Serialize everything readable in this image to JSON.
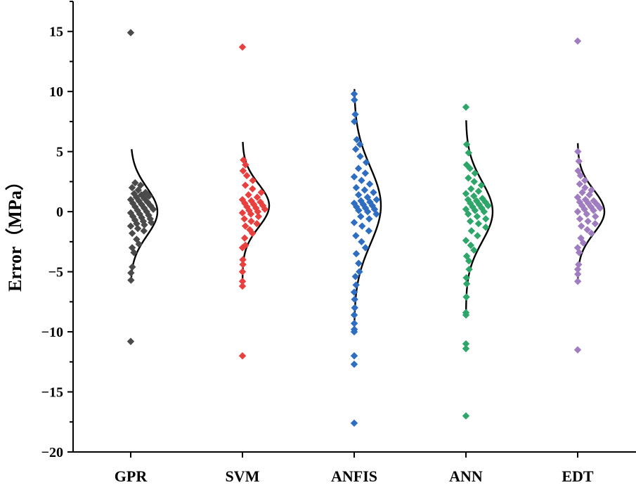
{
  "chart_data": {
    "type": "scatter",
    "title": "",
    "xlabel": "",
    "ylabel": "Error（MPa）",
    "ylim": [
      -20,
      17.5
    ],
    "yticks": [
      -20,
      -15,
      -10,
      -5,
      0,
      5,
      10,
      15
    ],
    "yticks_minor_step": 2.5,
    "grid": false,
    "legend": "none",
    "categories": [
      "GPR",
      "SVM",
      "ANFIS",
      "ANN",
      "EDT"
    ],
    "series": [
      {
        "category": "GPR",
        "color": "#4a4a4a",
        "curve": {
          "mean": 0,
          "sd": 2.0,
          "range": [
            -5.6,
            5.2
          ]
        },
        "values": [
          14.9,
          2.4,
          2.2,
          2.0,
          1.8,
          1.6,
          1.5,
          1.4,
          1.3,
          1.2,
          1.1,
          1.0,
          0.9,
          0.8,
          0.7,
          0.6,
          0.5,
          0.4,
          0.3,
          0.2,
          0.1,
          0.0,
          -0.1,
          -0.2,
          -0.3,
          -0.4,
          -0.5,
          -0.6,
          -0.7,
          -0.8,
          -0.9,
          -1.0,
          -1.1,
          -1.2,
          -1.4,
          -1.6,
          -1.8,
          -2.3,
          -2.7,
          -3.0,
          -3.4,
          -4.6,
          -5.1,
          -5.7,
          -10.8
        ]
      },
      {
        "category": "SVM",
        "color": "#e8403e",
        "curve": {
          "mean": 0.5,
          "sd": 1.8,
          "range": [
            -5.8,
            5.8
          ]
        },
        "values": [
          13.7,
          4.3,
          3.9,
          3.4,
          3.0,
          2.6,
          2.2,
          1.9,
          1.6,
          1.4,
          1.2,
          1.0,
          0.9,
          0.8,
          0.7,
          0.6,
          0.5,
          0.4,
          0.3,
          0.2,
          0.1,
          0.0,
          -0.1,
          -0.2,
          -0.4,
          -0.6,
          -0.8,
          -1.0,
          -1.2,
          -1.5,
          -1.8,
          -2.2,
          -2.8,
          -3.0,
          -4.0,
          -4.4,
          -5.0,
          -5.8,
          -6.2,
          -12.0
        ]
      },
      {
        "category": "ANFIS",
        "color": "#2e6dbf",
        "curve": {
          "mean": 0.5,
          "sd": 3.2,
          "range": [
            -10.2,
            10.2
          ]
        },
        "values": [
          9.8,
          9.3,
          8.1,
          7.5,
          6.0,
          5.6,
          5.2,
          4.6,
          4.1,
          3.6,
          3.2,
          2.9,
          2.6,
          2.3,
          2.0,
          1.8,
          1.6,
          1.4,
          1.2,
          1.0,
          0.9,
          0.8,
          0.7,
          0.6,
          0.5,
          0.4,
          0.3,
          0.2,
          0.1,
          0.0,
          -0.2,
          -0.4,
          -0.6,
          -0.9,
          -1.2,
          -1.6,
          -2.0,
          -2.5,
          -3.0,
          -3.5,
          -4.3,
          -5.0,
          -5.4,
          -6.1,
          -6.7,
          -7.3,
          -8.0,
          -8.6,
          -9.3,
          -9.8,
          -10.0,
          -12.0,
          -12.7,
          -17.6
        ]
      },
      {
        "category": "ANN",
        "color": "#2ea66a",
        "curve": {
          "mean": 0,
          "sd": 2.5,
          "range": [
            -8.6,
            7.6
          ]
        },
        "values": [
          8.7,
          5.6,
          4.9,
          3.9,
          3.6,
          3.2,
          2.8,
          2.5,
          2.2,
          1.9,
          1.7,
          1.5,
          1.3,
          1.1,
          1.0,
          0.9,
          0.8,
          0.7,
          0.6,
          0.5,
          0.4,
          0.3,
          0.2,
          0.1,
          0.0,
          -0.2,
          -0.4,
          -0.6,
          -0.8,
          -1.0,
          -1.3,
          -1.6,
          -2.0,
          -2.4,
          -2.8,
          -3.2,
          -3.7,
          -4.1,
          -4.8,
          -5.5,
          -6.0,
          -7.1,
          -8.4,
          -8.6,
          -11.0,
          -11.4,
          -17.0
        ]
      },
      {
        "category": "EDT",
        "color": "#a07cc0",
        "curve": {
          "mean": 0,
          "sd": 1.8,
          "range": [
            -5.8,
            5.7
          ]
        },
        "values": [
          14.2,
          5.0,
          4.2,
          3.4,
          3.0,
          2.6,
          2.3,
          2.0,
          1.8,
          1.6,
          1.4,
          1.2,
          1.0,
          0.9,
          0.8,
          0.7,
          0.6,
          0.5,
          0.4,
          0.3,
          0.2,
          0.1,
          0.0,
          -0.2,
          -0.4,
          -0.6,
          -0.8,
          -1.0,
          -1.2,
          -1.5,
          -1.8,
          -2.2,
          -2.6,
          -3.0,
          -3.4,
          -4.4,
          -4.8,
          -5.2,
          -5.8,
          -11.5
        ]
      }
    ]
  }
}
